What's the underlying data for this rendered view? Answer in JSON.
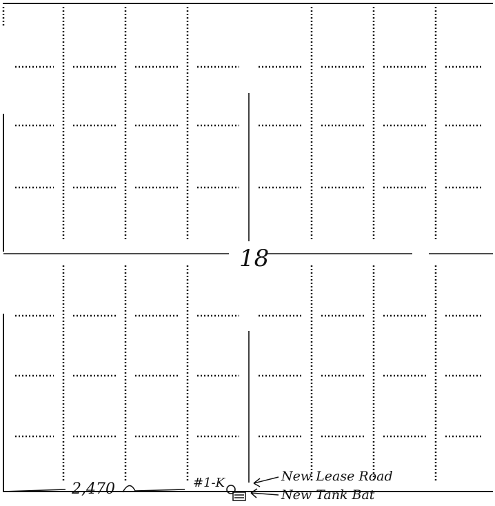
{
  "section": {
    "number": "18"
  },
  "annotations": {
    "distance": "2,470",
    "well_label": "#1-K",
    "lease_road": "New Lease Road",
    "tank_battery": "New Tank Bat"
  },
  "grid": {
    "columns": 8,
    "rows": 8,
    "line_style": "dotted",
    "quarter_lines": "solid"
  },
  "colors": {
    "ink": "#111111",
    "paper": "#ffffff"
  }
}
